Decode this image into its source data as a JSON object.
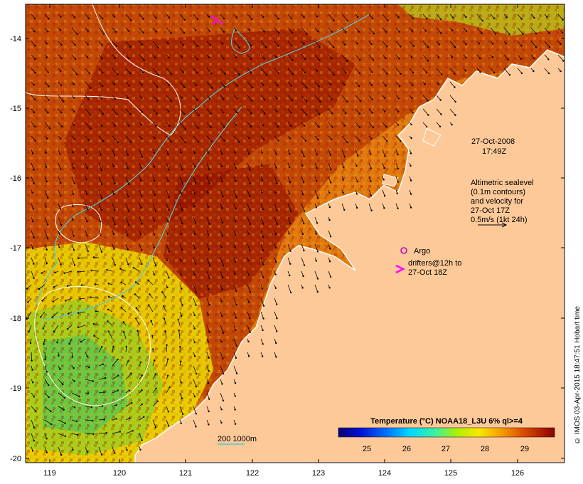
{
  "map": {
    "lon_ticks": [
      "119",
      "120",
      "121",
      "122",
      "123",
      "124",
      "125",
      "126"
    ],
    "lat_ticks": [
      "-14",
      "-15",
      "-16",
      "-17",
      "-18",
      "-19",
      "-20"
    ],
    "timestamp_date": "27-Oct-2008",
    "timestamp_time": "17:49Z",
    "altimetry_note": [
      "Altimetric sealevel",
      "(0.1m contours)",
      "and velocity for",
      "27-Oct 17Z",
      "0.5m/s (1kt 24h)"
    ],
    "argo_label": "Argo",
    "drifters_label": [
      "drifters@12h to",
      "27-Oct 18Z"
    ],
    "depth_contour_label": "200  1000m",
    "colorbar_title": "Temperature (°C) NOAA18_L3U 6% ql>=4",
    "colorbar_ticks": [
      "25",
      "26",
      "27",
      "28",
      "29"
    ],
    "copyright": "© IMOS 03-Apr-2015 18:47:51 Hobart time",
    "colors": {
      "land": "#fdc998",
      "coast": "#ffffff",
      "contour_cyan": "#4fc9d9",
      "argo": "#c000c0",
      "drifter": "#ff00ff"
    }
  }
}
